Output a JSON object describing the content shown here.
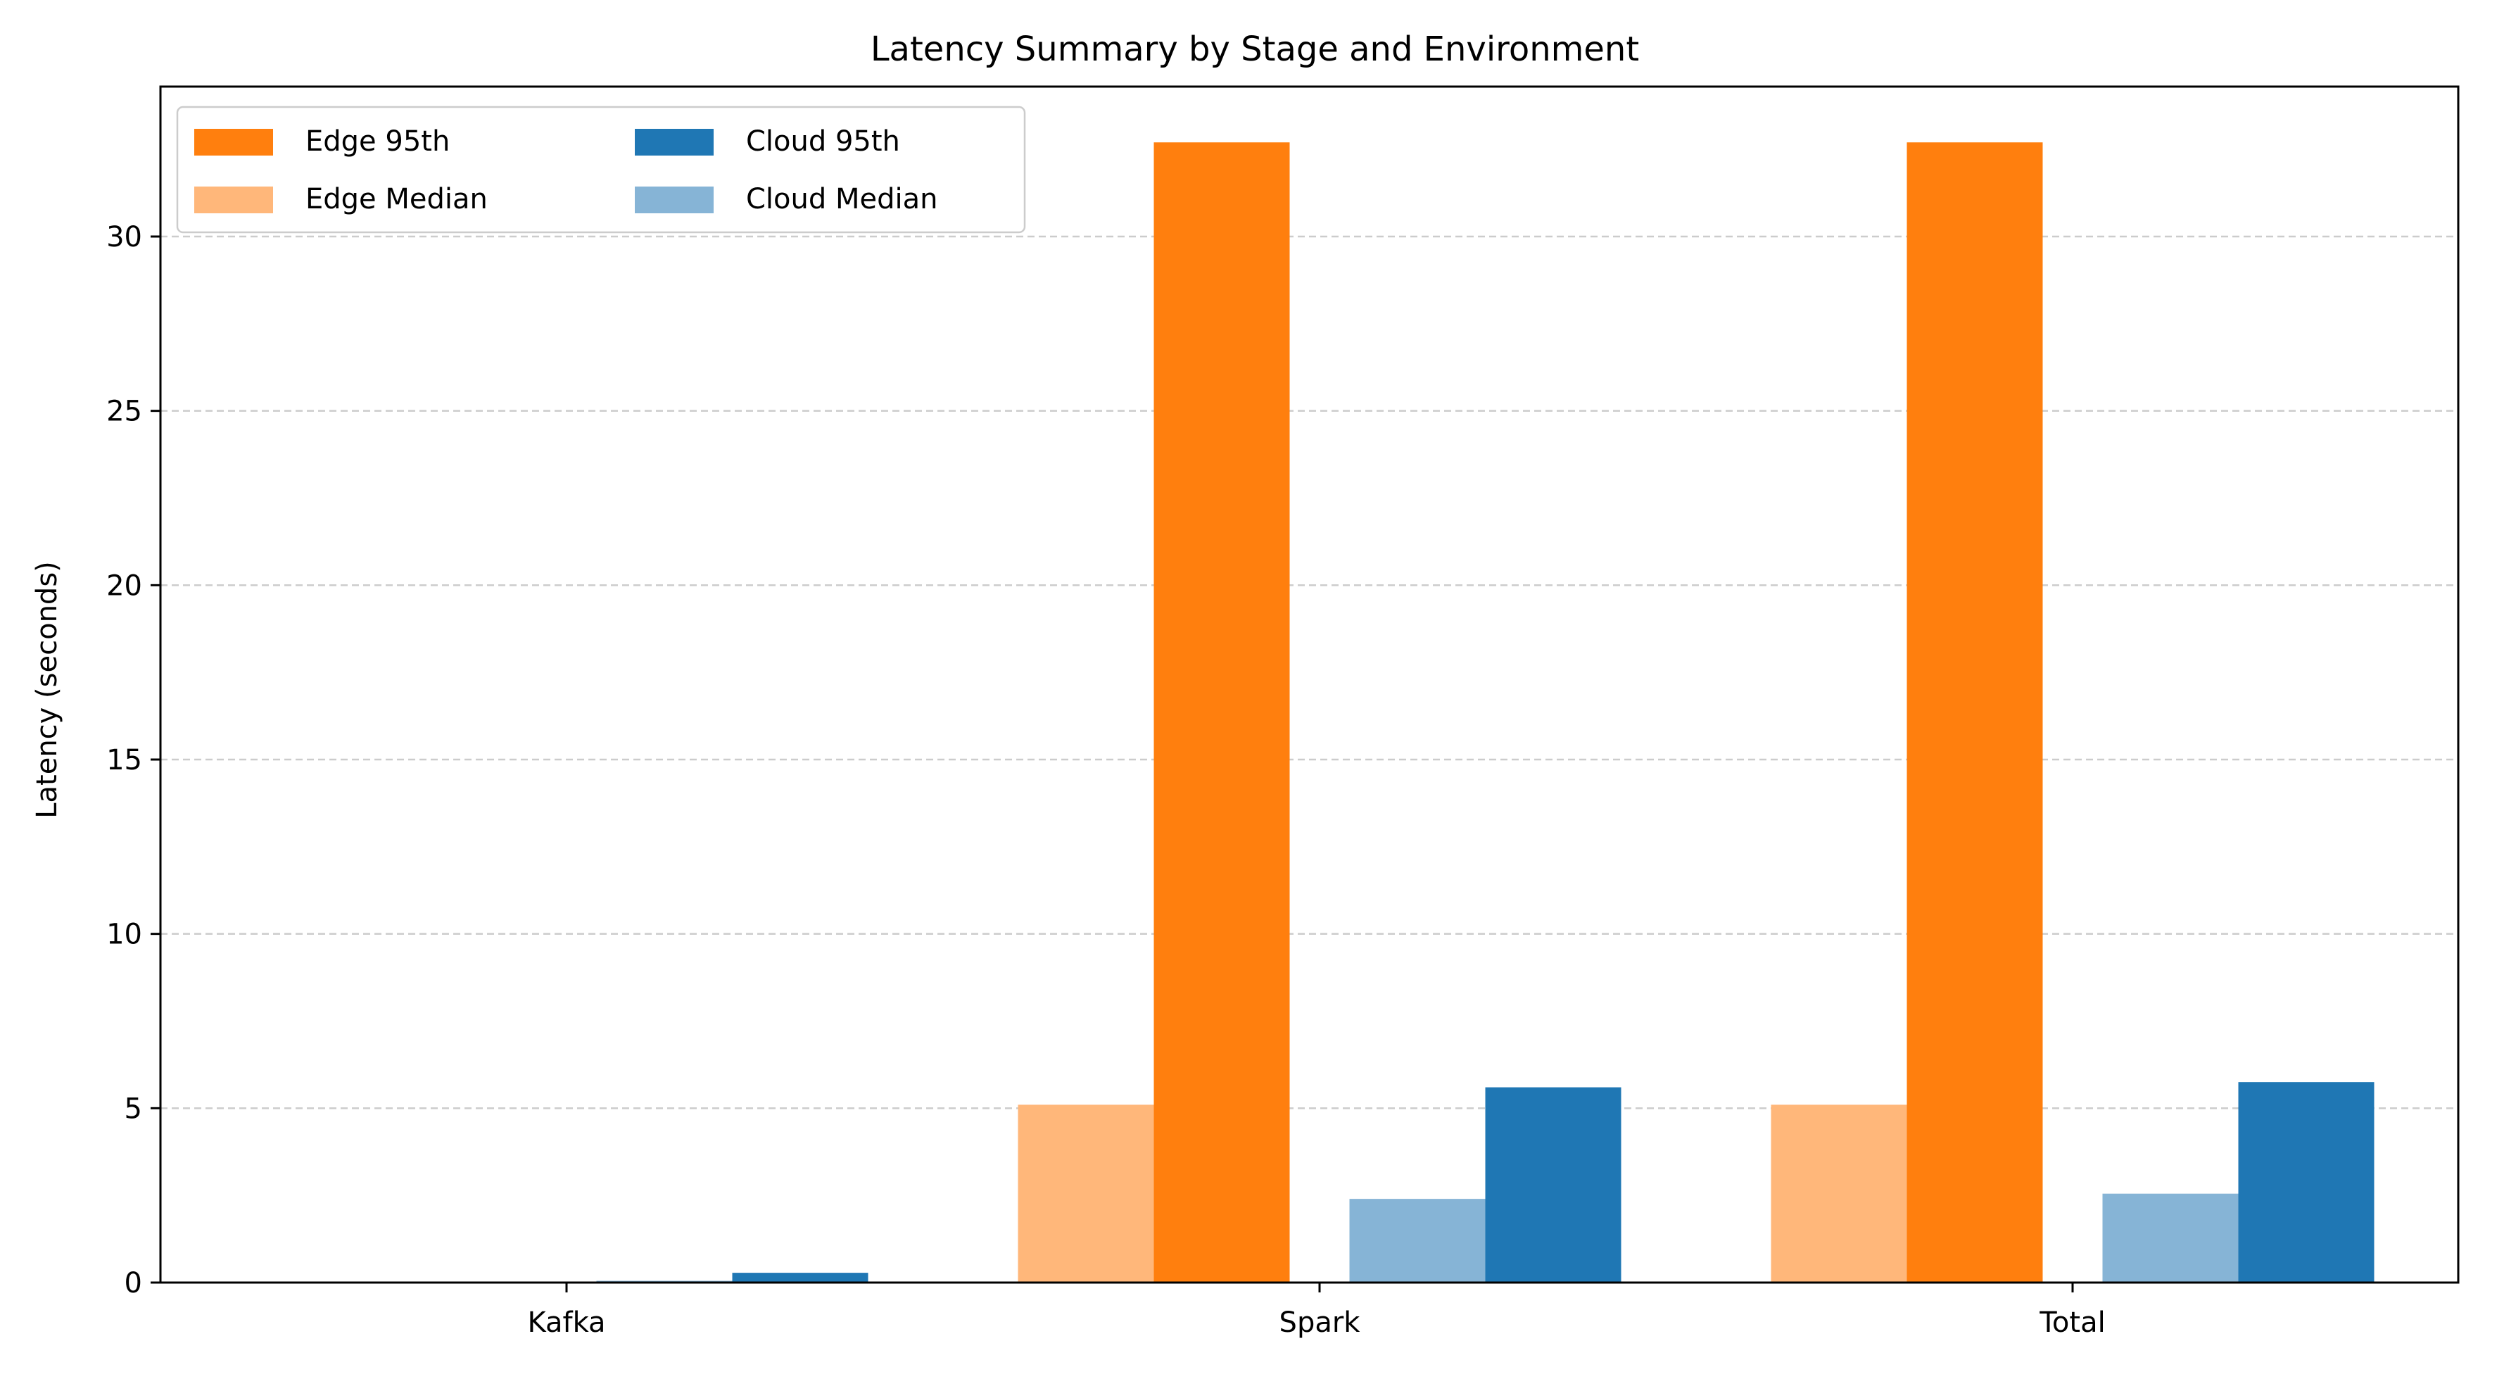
{
  "chart_data": {
    "type": "bar",
    "title": "Latency Summary by Stage and Environment",
    "xlabel": "",
    "ylabel": "Latency (seconds)",
    "categories": [
      "Kafka",
      "Spark",
      "Total"
    ],
    "ylim": [
      0,
      34.3
    ],
    "yticks": [
      0,
      5,
      10,
      15,
      20,
      25,
      30
    ],
    "grid": "y, dashed",
    "legend_position": "top-left",
    "series": [
      {
        "name": "Edge Median",
        "color": "#ffb77a",
        "values": [
          0.02,
          5.1,
          5.1
        ]
      },
      {
        "name": "Edge 95th",
        "color": "#ff7f0e",
        "values": [
          0.03,
          32.7,
          32.7
        ]
      },
      {
        "name": "Cloud Median",
        "color": "#86b4d6",
        "values": [
          0.05,
          2.4,
          2.55
        ]
      },
      {
        "name": "Cloud 95th",
        "color": "#1f77b4",
        "values": [
          0.28,
          5.6,
          5.75
        ]
      }
    ],
    "legend_order": [
      "Edge 95th",
      "Edge Median",
      "Cloud 95th",
      "Cloud Median"
    ]
  }
}
